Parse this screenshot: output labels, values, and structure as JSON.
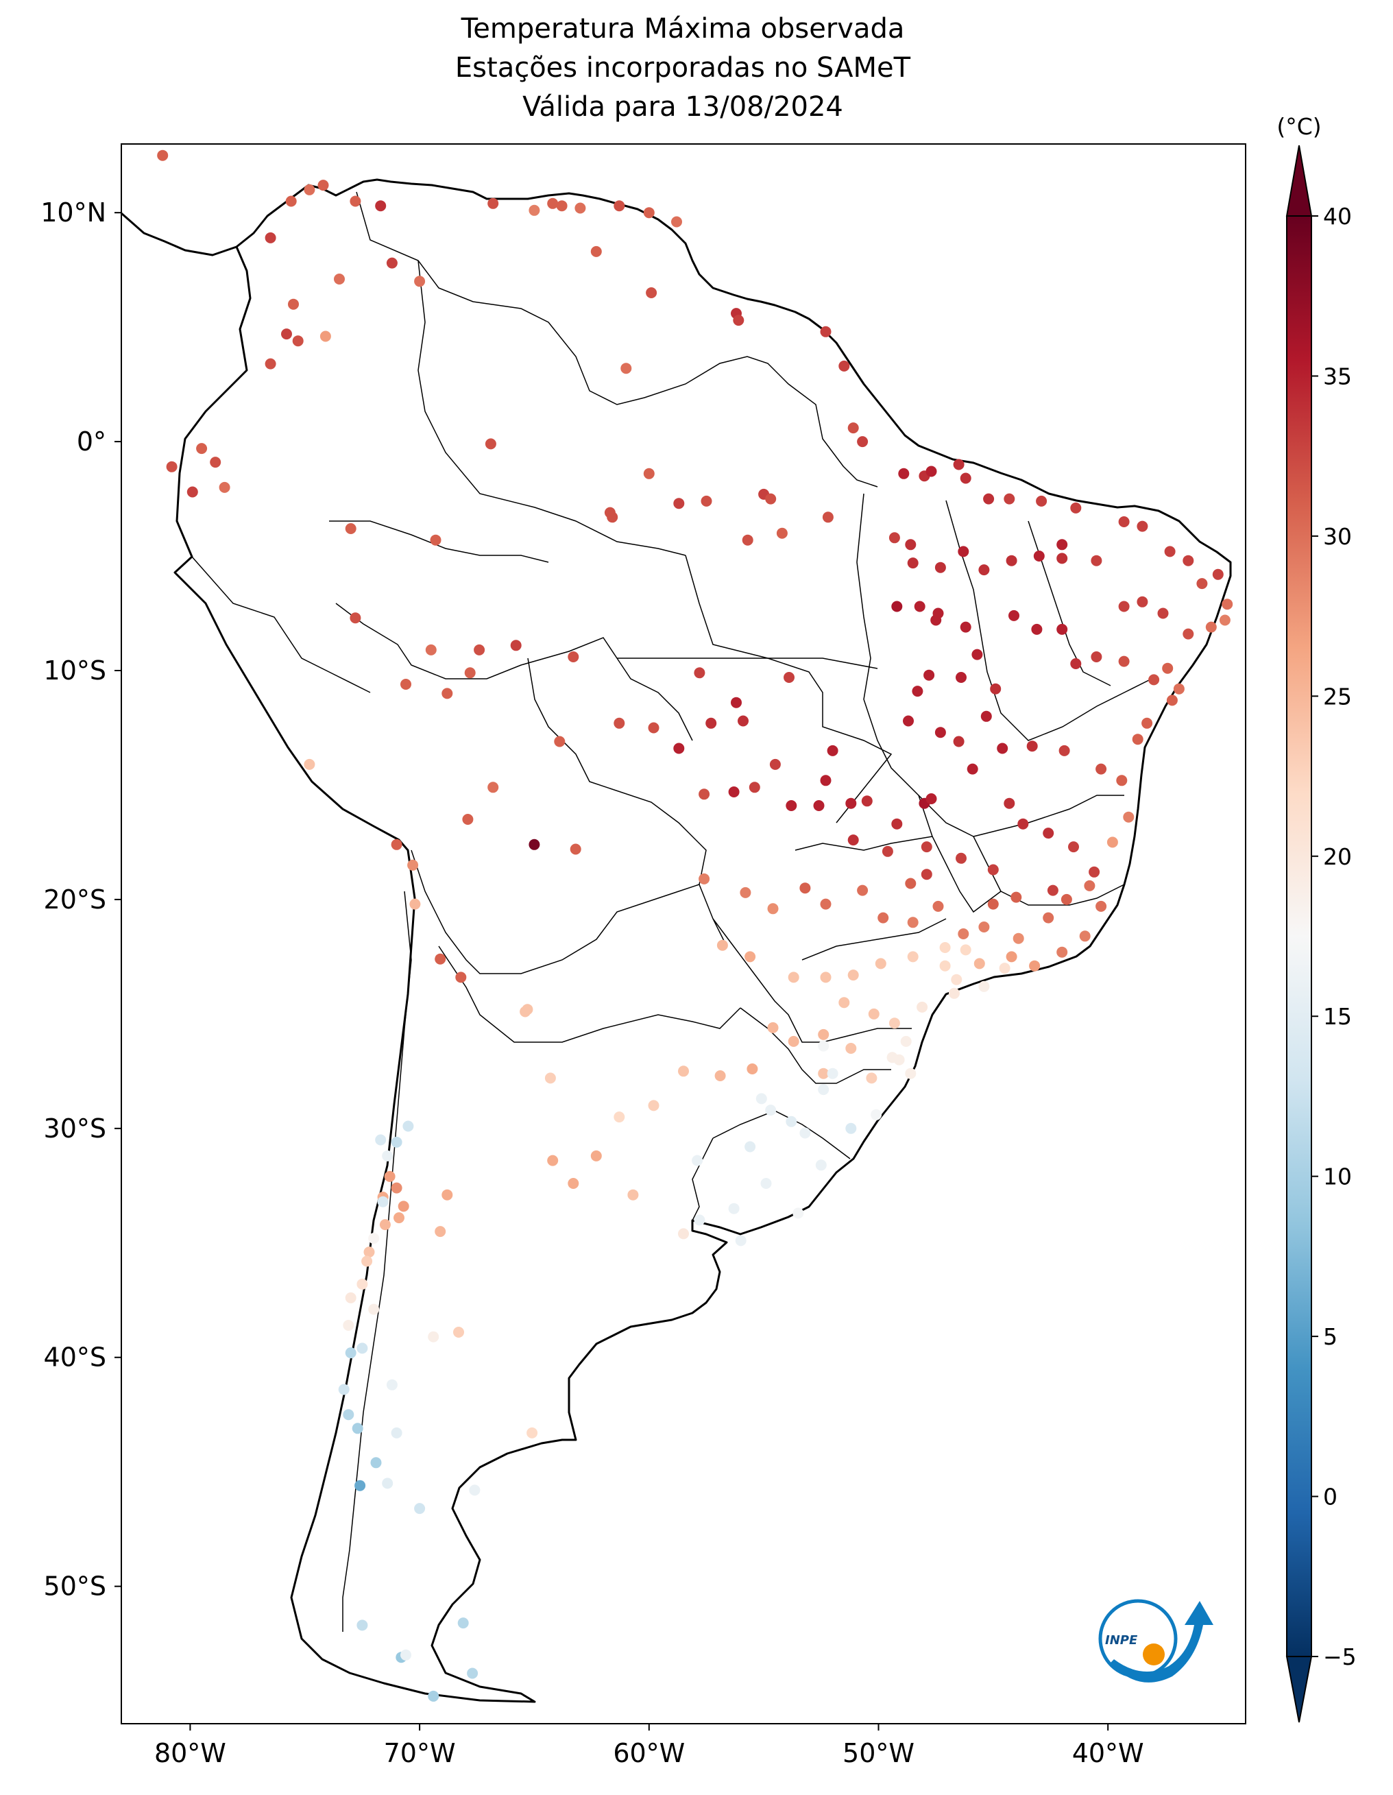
{
  "title": {
    "line1": "Temperatura Máxima observada",
    "line2": "Estações incorporadas no SAMeT",
    "line3": "Válida para 13/08/2024"
  },
  "map": {
    "lon_range": [
      -83,
      -34
    ],
    "lat_range": [
      -56,
      13
    ],
    "lon_ticks": [
      {
        "value": -80,
        "label": "80°W"
      },
      {
        "value": -70,
        "label": "70°W"
      },
      {
        "value": -60,
        "label": "60°W"
      },
      {
        "value": -50,
        "label": "50°W"
      },
      {
        "value": -40,
        "label": "40°W"
      }
    ],
    "lat_ticks": [
      {
        "value": 10,
        "label": "10°N"
      },
      {
        "value": 0,
        "label": "0°"
      },
      {
        "value": -10,
        "label": "10°S"
      },
      {
        "value": -20,
        "label": "20°S"
      },
      {
        "value": -30,
        "label": "30°S"
      },
      {
        "value": -40,
        "label": "40°S"
      },
      {
        "value": -50,
        "label": "50°S"
      }
    ]
  },
  "colorbar": {
    "unit": "(°C)",
    "min": -5,
    "max": 40,
    "ticks": [
      {
        "value": 40,
        "label": "40"
      },
      {
        "value": 35,
        "label": "35"
      },
      {
        "value": 30,
        "label": "30"
      },
      {
        "value": 25,
        "label": "25"
      },
      {
        "value": 20,
        "label": "20"
      },
      {
        "value": 15,
        "label": "15"
      },
      {
        "value": 10,
        "label": "10"
      },
      {
        "value": 5,
        "label": "5"
      },
      {
        "value": 0,
        "label": "0"
      },
      {
        "value": -5,
        "label": "−5"
      }
    ],
    "colormap": "RdBu_r",
    "extend": "both"
  },
  "logo": {
    "text": "INPE",
    "colors": {
      "blue": "#0e7cc1",
      "orange": "#f39200"
    }
  },
  "chart_data": {
    "type": "scatter",
    "title": "Temperatura Máxima observada / Estações incorporadas no SAMeT / Válida para 13/08/2024",
    "xlabel": "",
    "ylabel": "",
    "color_unit": "°C",
    "stations": [
      [
        -81.2,
        12.5,
        31
      ],
      [
        -76.5,
        8.9,
        33
      ],
      [
        -75.6,
        10.5,
        31
      ],
      [
        -74.8,
        11,
        30
      ],
      [
        -74.2,
        11.2,
        31
      ],
      [
        -72.8,
        10.5,
        31
      ],
      [
        -71.7,
        10.3,
        34
      ],
      [
        -71.2,
        7.8,
        33
      ],
      [
        -73.5,
        7.1,
        30
      ],
      [
        -75.5,
        6,
        31
      ],
      [
        -75.8,
        4.7,
        33
      ],
      [
        -75.3,
        4.4,
        32
      ],
      [
        -74.1,
        4.6,
        27
      ],
      [
        -76.5,
        3.4,
        32
      ],
      [
        -70,
        7,
        30
      ],
      [
        -66.8,
        10.4,
        32
      ],
      [
        -65,
        10.1,
        29
      ],
      [
        -64.2,
        10.4,
        31
      ],
      [
        -63.8,
        10.3,
        31
      ],
      [
        -63,
        10.2,
        30
      ],
      [
        -61.3,
        10.3,
        32
      ],
      [
        -60,
        10,
        31
      ],
      [
        -58.8,
        9.6,
        30
      ],
      [
        -62.3,
        8.3,
        31
      ],
      [
        -61,
        3.2,
        30
      ],
      [
        -59.9,
        6.5,
        32
      ],
      [
        -56.2,
        5.6,
        34
      ],
      [
        -56.1,
        5.3,
        33
      ],
      [
        -52.3,
        4.8,
        33
      ],
      [
        -51.5,
        3.3,
        33
      ],
      [
        -51.1,
        0.6,
        32
      ],
      [
        -50.7,
        0,
        33
      ],
      [
        -78.9,
        -0.9,
        32
      ],
      [
        -78.5,
        -2,
        30
      ],
      [
        -79.5,
        -0.3,
        31
      ],
      [
        -80.8,
        -1.1,
        32
      ],
      [
        -79.9,
        -2.2,
        33
      ],
      [
        -73,
        -3.8,
        31
      ],
      [
        -60,
        -1.4,
        31
      ],
      [
        -66.9,
        -0.1,
        32
      ],
      [
        -69.3,
        -4.3,
        31
      ],
      [
        -61.7,
        -3.1,
        32
      ],
      [
        -61.6,
        -3.3,
        32
      ],
      [
        -58.7,
        -2.7,
        33
      ],
      [
        -57.5,
        -2.6,
        32
      ],
      [
        -55,
        -2.3,
        33
      ],
      [
        -54.7,
        -2.5,
        32
      ],
      [
        -55.7,
        -4.3,
        32
      ],
      [
        -54.2,
        -4,
        31
      ],
      [
        -52.2,
        -3.3,
        32
      ],
      [
        -49.3,
        -4.2,
        33
      ],
      [
        -48.6,
        -4.5,
        34
      ],
      [
        -48,
        -1.5,
        34
      ],
      [
        -48.9,
        -1.4,
        35
      ],
      [
        -46.5,
        -1,
        34
      ],
      [
        -46.2,
        -1.6,
        34
      ],
      [
        -47.7,
        -1.3,
        35
      ],
      [
        -44.3,
        -2.5,
        33
      ],
      [
        -45.2,
        -2.5,
        34
      ],
      [
        -42.9,
        -2.6,
        33
      ],
      [
        -41.4,
        -2.9,
        33
      ],
      [
        -39.3,
        -3.5,
        33
      ],
      [
        -38.5,
        -3.7,
        33
      ],
      [
        -37.3,
        -4.8,
        33
      ],
      [
        -36.5,
        -5.2,
        33
      ],
      [
        -35.2,
        -5.8,
        33
      ],
      [
        -35.9,
        -6.2,
        32
      ],
      [
        -34.8,
        -7.1,
        30
      ],
      [
        -34.9,
        -7.8,
        29
      ],
      [
        -35.5,
        -8.1,
        30
      ],
      [
        -36.5,
        -8.4,
        32
      ],
      [
        -37.6,
        -7.5,
        33
      ],
      [
        -38.5,
        -7,
        33
      ],
      [
        -39.3,
        -7.2,
        33
      ],
      [
        -40.5,
        -5.2,
        33
      ],
      [
        -42,
        -4.5,
        35
      ],
      [
        -42,
        -5.1,
        34
      ],
      [
        -43,
        -5,
        35
      ],
      [
        -44.2,
        -5.2,
        34
      ],
      [
        -45.4,
        -5.6,
        34
      ],
      [
        -46.3,
        -4.8,
        35
      ],
      [
        -47.3,
        -5.5,
        34
      ],
      [
        -48.5,
        -5.3,
        34
      ],
      [
        -49.2,
        -7.2,
        36
      ],
      [
        -48.2,
        -7.2,
        35
      ],
      [
        -47.5,
        -7.8,
        35
      ],
      [
        -47.4,
        -7.5,
        35
      ],
      [
        -46.2,
        -8.1,
        35
      ],
      [
        -45.7,
        -9.3,
        35
      ],
      [
        -44.1,
        -7.6,
        35
      ],
      [
        -43.1,
        -8.2,
        35
      ],
      [
        -42,
        -8.2,
        35
      ],
      [
        -41.4,
        -9.7,
        34
      ],
      [
        -40.5,
        -9.4,
        33
      ],
      [
        -39.3,
        -9.6,
        32
      ],
      [
        -37.4,
        -9.9,
        31
      ],
      [
        -38,
        -10.4,
        32
      ],
      [
        -36.9,
        -10.8,
        30
      ],
      [
        -37.2,
        -11.3,
        31
      ],
      [
        -38.3,
        -12.3,
        31
      ],
      [
        -38.7,
        -13,
        31
      ],
      [
        -39.4,
        -14.8,
        31
      ],
      [
        -39.1,
        -16.4,
        29
      ],
      [
        -40.3,
        -14.3,
        32
      ],
      [
        -41.9,
        -13.5,
        33
      ],
      [
        -43.3,
        -13.3,
        34
      ],
      [
        -44.6,
        -13.4,
        35
      ],
      [
        -45.3,
        -12,
        35
      ],
      [
        -44.9,
        -10.8,
        34
      ],
      [
        -46.4,
        -10.3,
        35
      ],
      [
        -47.8,
        -10.2,
        35
      ],
      [
        -48.3,
        -10.9,
        35
      ],
      [
        -48.7,
        -12.2,
        35
      ],
      [
        -47.3,
        -12.7,
        35
      ],
      [
        -46.5,
        -13.1,
        34
      ],
      [
        -45.9,
        -14.3,
        35
      ],
      [
        -44.3,
        -15.8,
        34
      ],
      [
        -43.7,
        -16.7,
        34
      ],
      [
        -42.6,
        -17.1,
        34
      ],
      [
        -41.5,
        -17.7,
        33
      ],
      [
        -40.6,
        -18.8,
        33
      ],
      [
        -42.4,
        -19.6,
        33
      ],
      [
        -44,
        -19.9,
        31
      ],
      [
        -45,
        -18.7,
        33
      ],
      [
        -46.4,
        -18.2,
        33
      ],
      [
        -47.9,
        -17.7,
        33
      ],
      [
        -49.2,
        -16.7,
        34
      ],
      [
        -48,
        -15.8,
        36
      ],
      [
        -47.7,
        -15.6,
        35
      ],
      [
        -51.2,
        -15.8,
        35
      ],
      [
        -52.3,
        -14.8,
        35
      ],
      [
        -53.8,
        -15.9,
        35
      ],
      [
        -55.4,
        -15.1,
        33
      ],
      [
        -56.3,
        -15.3,
        35
      ],
      [
        -57.6,
        -15.4,
        32
      ],
      [
        -58.7,
        -13.4,
        35
      ],
      [
        -59.8,
        -12.5,
        32
      ],
      [
        -61.3,
        -12.3,
        32
      ],
      [
        -63.9,
        -13.1,
        31
      ],
      [
        -63.3,
        -9.4,
        32
      ],
      [
        -65.8,
        -8.9,
        33
      ],
      [
        -67.4,
        -9.1,
        32
      ],
      [
        -67.8,
        -10.1,
        31
      ],
      [
        -68.8,
        -11,
        31
      ],
      [
        -70.6,
        -10.6,
        31
      ],
      [
        -72.8,
        -7.7,
        32
      ],
      [
        -69.5,
        -9.1,
        30
      ],
      [
        -66.8,
        -15.1,
        30
      ],
      [
        -67.9,
        -16.5,
        31
      ],
      [
        -65,
        -17.6,
        39
      ],
      [
        -63.2,
        -17.8,
        31
      ],
      [
        -71,
        -17.6,
        31
      ],
      [
        -70.3,
        -18.5,
        28
      ],
      [
        -70.2,
        -20.2,
        25
      ],
      [
        -69.1,
        -22.6,
        31
      ],
      [
        -68.2,
        -23.4,
        31
      ],
      [
        -74.8,
        -14.1,
        24
      ],
      [
        -56.2,
        -11.4,
        35
      ],
      [
        -55.9,
        -12.2,
        34
      ],
      [
        -54.5,
        -14.1,
        33
      ],
      [
        -52.6,
        -15.9,
        35
      ],
      [
        -51.1,
        -17.4,
        34
      ],
      [
        -53.9,
        -10.3,
        33
      ],
      [
        -57.8,
        -10.1,
        33
      ],
      [
        -57.3,
        -12.3,
        34
      ],
      [
        -52,
        -13.5,
        35
      ],
      [
        -50.5,
        -15.7,
        34
      ],
      [
        -49.6,
        -17.9,
        33
      ],
      [
        -48.6,
        -19.3,
        31
      ],
      [
        -47.9,
        -18.9,
        33
      ],
      [
        -50.7,
        -19.6,
        30
      ],
      [
        -52.3,
        -20.2,
        30
      ],
      [
        -53.2,
        -19.5,
        31
      ],
      [
        -54.6,
        -20.4,
        28
      ],
      [
        -55.8,
        -19.7,
        29
      ],
      [
        -57.6,
        -19.1,
        29
      ],
      [
        -56.8,
        -22,
        25
      ],
      [
        -55.6,
        -22.5,
        26
      ],
      [
        -53.7,
        -23.4,
        24
      ],
      [
        -52.3,
        -23.4,
        24
      ],
      [
        -51.1,
        -23.3,
        24
      ],
      [
        -49.9,
        -22.8,
        24
      ],
      [
        -48.5,
        -22.5,
        23
      ],
      [
        -47.1,
        -22.9,
        22
      ],
      [
        -46.6,
        -23.5,
        21
      ],
      [
        -45.6,
        -22.8,
        25
      ],
      [
        -44.2,
        -22.5,
        27
      ],
      [
        -43.2,
        -22.9,
        27
      ],
      [
        -42,
        -22.3,
        29
      ],
      [
        -41,
        -21.6,
        29
      ],
      [
        -40.3,
        -20.3,
        30
      ],
      [
        -40.8,
        -19.4,
        30
      ],
      [
        -39.8,
        -17.5,
        27
      ],
      [
        -48.5,
        -21,
        29
      ],
      [
        -49.8,
        -20.8,
        30
      ],
      [
        -47.4,
        -20.3,
        30
      ],
      [
        -46.3,
        -21.5,
        29
      ],
      [
        -45,
        -20.2,
        31
      ],
      [
        -45.4,
        -21.2,
        29
      ],
      [
        -43.9,
        -21.7,
        28
      ],
      [
        -42.6,
        -20.8,
        30
      ],
      [
        -41.8,
        -20,
        31
      ],
      [
        -51.5,
        -24.5,
        24
      ],
      [
        -50.2,
        -25,
        24
      ],
      [
        -49.3,
        -25.4,
        23
      ],
      [
        -52.4,
        -25.9,
        25
      ],
      [
        -53.7,
        -26.2,
        25
      ],
      [
        -51.2,
        -26.5,
        24
      ],
      [
        -50.3,
        -27.8,
        23
      ],
      [
        -48.6,
        -27.6,
        19
      ],
      [
        -49.4,
        -26.9,
        19
      ],
      [
        -52.4,
        -27.6,
        24
      ],
      [
        -54.6,
        -25.6,
        25
      ],
      [
        -55.5,
        -27.4,
        26
      ],
      [
        -56.9,
        -27.7,
        25
      ],
      [
        -58.5,
        -27.5,
        24
      ],
      [
        -59.8,
        -29,
        23
      ],
      [
        -62.3,
        -31.2,
        26
      ],
      [
        -63.3,
        -32.4,
        26
      ],
      [
        -64.2,
        -31.4,
        26
      ],
      [
        -60.7,
        -32.9,
        24
      ],
      [
        -58.5,
        -34.6,
        20
      ],
      [
        -61.3,
        -29.5,
        22
      ],
      [
        -64.3,
        -27.8,
        23
      ],
      [
        -65.3,
        -24.8,
        24
      ],
      [
        -65.4,
        -24.9,
        24
      ],
      [
        -68.8,
        -32.9,
        26
      ],
      [
        -69.1,
        -34.5,
        25
      ],
      [
        -71.6,
        -33,
        26
      ],
      [
        -71.3,
        -32.1,
        27
      ],
      [
        -70.7,
        -33.4,
        27
      ],
      [
        -70.9,
        -33.9,
        26
      ],
      [
        -71,
        -32.6,
        28
      ],
      [
        -71.5,
        -34.2,
        25
      ],
      [
        -72.2,
        -35.4,
        24
      ],
      [
        -72.3,
        -35.8,
        23
      ],
      [
        -71.4,
        -31.2,
        16
      ],
      [
        -71,
        -30.6,
        12
      ],
      [
        -70.5,
        -29.9,
        13
      ],
      [
        -71.7,
        -30.5,
        14
      ],
      [
        -71.6,
        -33.2,
        14
      ],
      [
        -72,
        -34.8,
        18
      ],
      [
        -72.5,
        -36.8,
        21
      ],
      [
        -73,
        -37.4,
        20
      ],
      [
        -73.1,
        -38.6,
        19
      ],
      [
        -73,
        -39.8,
        11
      ],
      [
        -72.5,
        -39.6,
        13
      ],
      [
        -73.3,
        -41.4,
        13
      ],
      [
        -73.1,
        -42.5,
        11
      ],
      [
        -72.7,
        -43.1,
        10
      ],
      [
        -72.6,
        -45.6,
        6
      ],
      [
        -71.2,
        -41.2,
        16
      ],
      [
        -69.4,
        -39.1,
        19
      ],
      [
        -67.6,
        -45.8,
        16
      ],
      [
        -68.3,
        -38.9,
        23
      ],
      [
        -65.1,
        -43.3,
        22
      ],
      [
        -70.8,
        -53.1,
        9
      ],
      [
        -67.7,
        -53.8,
        11
      ],
      [
        -68.1,
        -51.6,
        11
      ],
      [
        -72.5,
        -51.7,
        12
      ],
      [
        -70.6,
        -53,
        16
      ],
      [
        -69.4,
        -54.8,
        10
      ],
      [
        -71.4,
        -45.5,
        15
      ],
      [
        -70,
        -46.6,
        13
      ],
      [
        -71.9,
        -44.6,
        10
      ],
      [
        -71,
        -43.3,
        15
      ],
      [
        -72,
        -37.9,
        19
      ],
      [
        -55.1,
        -28.7,
        16
      ],
      [
        -55.6,
        -30.8,
        15
      ],
      [
        -53.8,
        -29.7,
        15
      ],
      [
        -52.4,
        -28.3,
        16
      ],
      [
        -51.2,
        -30,
        14
      ],
      [
        -54.9,
        -32.4,
        16
      ],
      [
        -52.5,
        -31.6,
        16
      ],
      [
        -56,
        -34.9,
        16
      ],
      [
        -57.8,
        -34,
        16
      ],
      [
        -54.7,
        -29.2,
        16
      ],
      [
        -52,
        -27.6,
        16
      ],
      [
        -53.2,
        -30.2,
        16
      ],
      [
        -50.1,
        -29.4,
        17
      ],
      [
        -52.4,
        -26.4,
        17
      ],
      [
        -56.3,
        -33.5,
        16
      ],
      [
        -53.5,
        -33.7,
        17
      ],
      [
        -57.9,
        -31.4,
        16
      ],
      [
        -46.7,
        -24.1,
        20
      ],
      [
        -45.4,
        -23.8,
        19
      ],
      [
        -44.5,
        -23,
        21
      ],
      [
        -48.1,
        -24.7,
        20
      ],
      [
        -48.8,
        -26.2,
        19
      ],
      [
        -49.1,
        -27,
        19
      ],
      [
        -47.1,
        -22.1,
        22
      ],
      [
        -46.2,
        -22.2,
        22
      ]
    ]
  }
}
